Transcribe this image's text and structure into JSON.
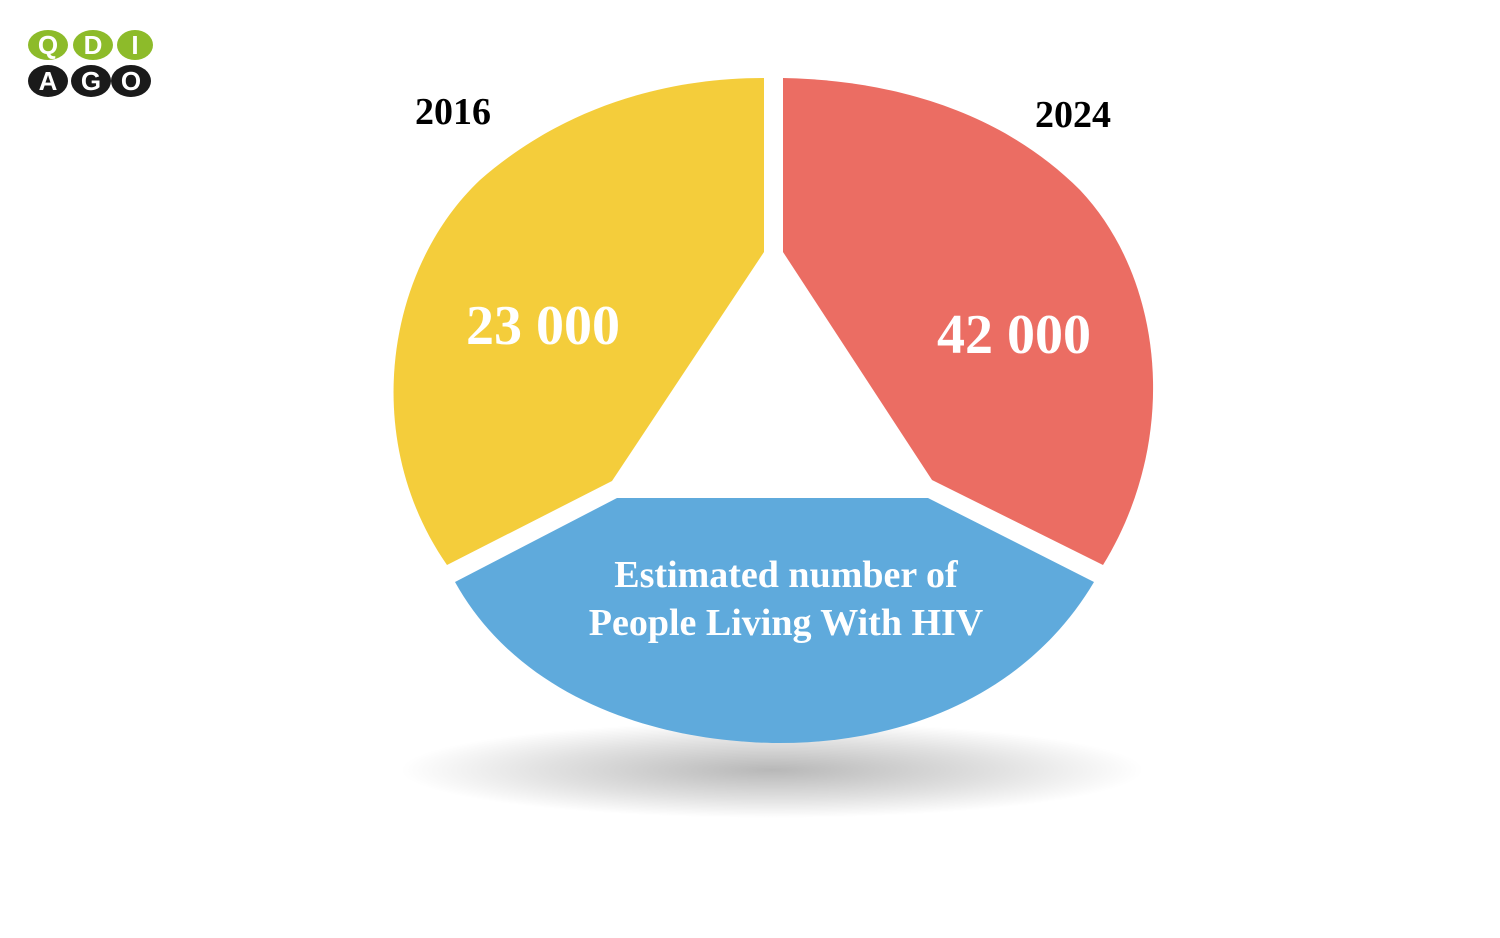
{
  "logo": {
    "letters_row1": [
      "Q",
      "D",
      "I"
    ],
    "letters_row2": [
      "A",
      "G",
      "O"
    ],
    "colors": {
      "green": "#8dbb2a",
      "black": "#1a1a1a",
      "letter": "#ffffff"
    }
  },
  "diagram": {
    "segments": [
      {
        "year": "2016",
        "value": "23 000",
        "color": "#f4cd3b"
      },
      {
        "year": "2024",
        "value": "42 000",
        "color": "#eb6d63"
      }
    ],
    "caption": {
      "line1": "Estimated number of",
      "line2": "People Living With HIV",
      "color": "#5faadc"
    }
  }
}
